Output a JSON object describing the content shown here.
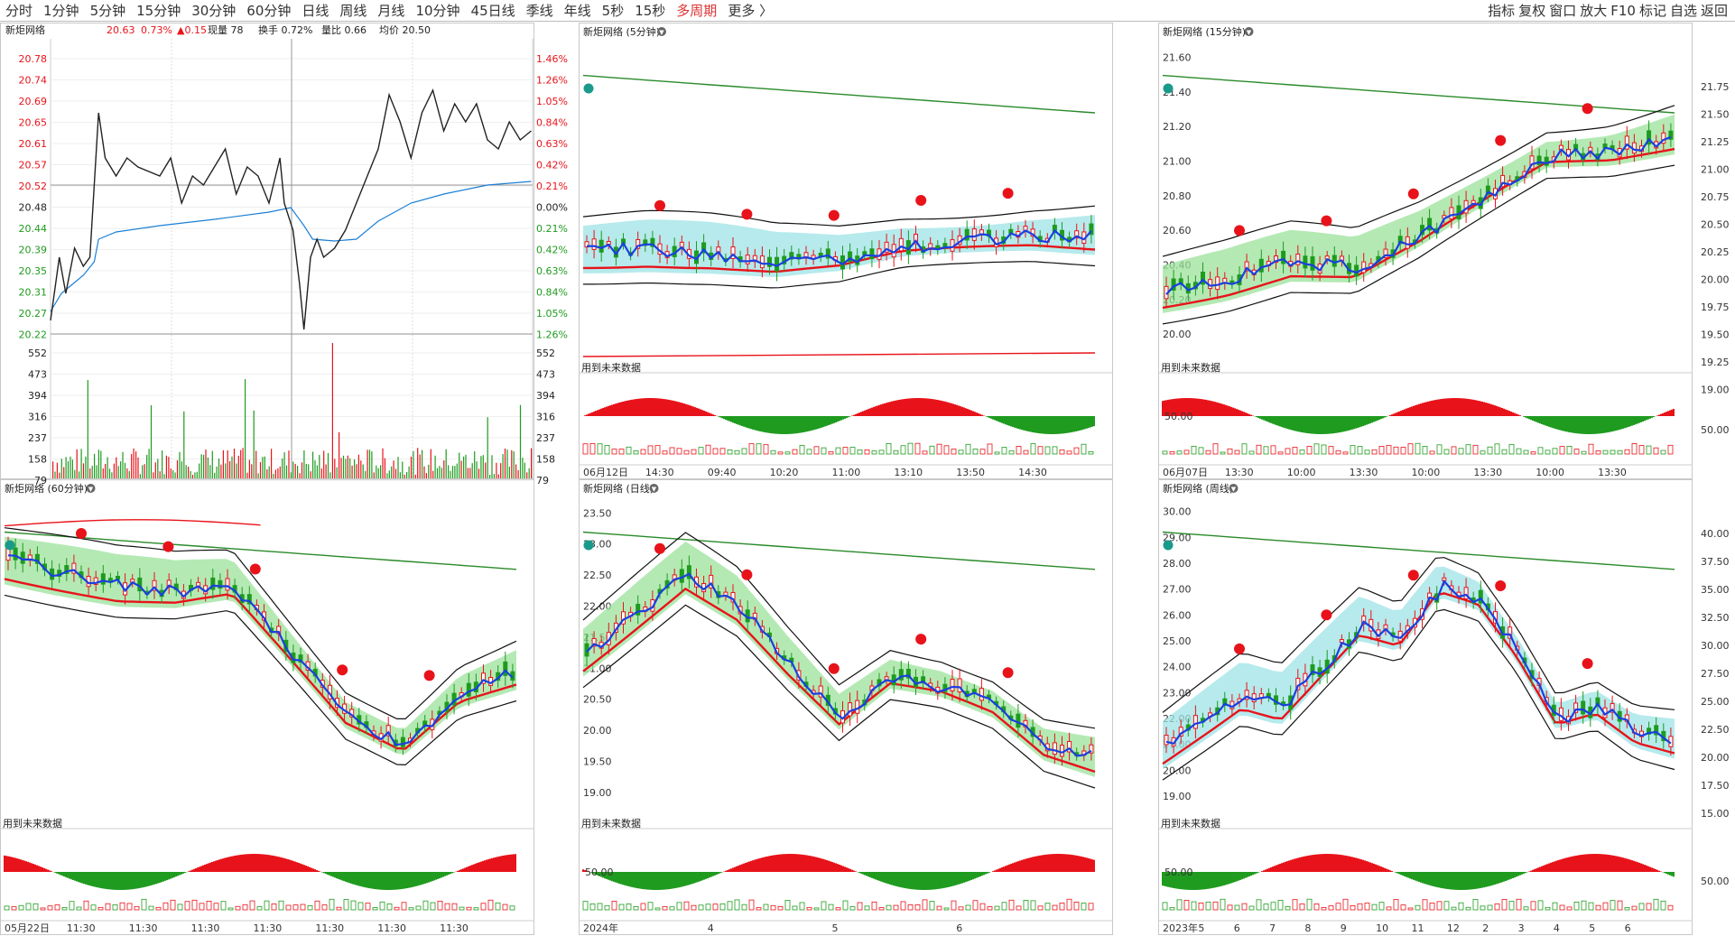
{
  "timeframes": [
    "分时",
    "1分钟",
    "5分钟",
    "15分钟",
    "30分钟",
    "60分钟",
    "日线",
    "周线",
    "月线",
    "10分钟",
    "45日线",
    "季线",
    "年线",
    "5秒",
    "15秒",
    "多周期",
    "更多 〉"
  ],
  "tools": [
    "指标",
    "复权",
    "窗口",
    "放大",
    "F10",
    "标记",
    "自选",
    "返回"
  ],
  "colors": {
    "up": "#e8131a",
    "down": "#1f9b1f",
    "line_black": "#111111",
    "line_blue": "#1a3fe0",
    "line_red": "#e8131a",
    "line_green": "#2a8a2a",
    "fill_green": "#9be29b",
    "fill_cyan": "#9ee3e6"
  },
  "intraday": {
    "title": "新炬网络",
    "price": "20.63",
    "pct": "0.73%",
    "chg": "▲0.15",
    "volume": "现量 78",
    "turnover": "换手 0.72%",
    "ratio": "量比 0.66",
    "avg_label": "均价 20.50",
    "price_ticks": [
      "20.78",
      "20.74",
      "20.69",
      "20.65",
      "20.61",
      "20.57",
      "20.52",
      "20.48",
      "20.44",
      "20.39",
      "20.35",
      "20.31",
      "20.27",
      "20.22"
    ],
    "pct_ticks": [
      "1.46%",
      "1.26%",
      "1.05%",
      "0.84%",
      "0.63%",
      "0.42%",
      "0.21%",
      "0.00%",
      "0.21%",
      "0.42%",
      "0.63%",
      "0.84%",
      "1.05%",
      "1.26%"
    ],
    "vol_ticks": [
      "552",
      "473",
      "394",
      "316",
      "237",
      "158",
      "79"
    ]
  },
  "panels": [
    {
      "id": "m5",
      "title": "新炬网络 (5分钟)",
      "future": "用到未来数据",
      "times": [
        "06月12日",
        "14:30",
        "09:40",
        "10:20",
        "11:00",
        "13:10",
        "13:50",
        "14:30"
      ],
      "yticks": [],
      "ind_tick": ""
    },
    {
      "id": "m15",
      "title": "新炬网络 (15分钟)",
      "future": "用到未来数据",
      "times": [
        "06月07日",
        "13:30",
        "10:00",
        "13:30",
        "10:00",
        "13:30",
        "10:00",
        "13:30"
      ],
      "yticks": [
        "21.60",
        "21.40",
        "21.20",
        "21.00",
        "20.80",
        "20.60",
        "20.40",
        "20.20",
        "20.00"
      ],
      "ind_tick": "50.00"
    },
    {
      "id": "m60",
      "title": "新炬网络 (60分钟)",
      "future": "用到未来数据",
      "times": [
        "05月22日",
        "11:30",
        "11:30",
        "11:30",
        "11:30",
        "11:30",
        "11:30",
        "11:30"
      ],
      "yticks": [],
      "ind_tick": ""
    },
    {
      "id": "day",
      "title": "新炬网络 (日线)",
      "future": "用到未来数据",
      "times": [
        "2024年",
        "4",
        "5",
        "6"
      ],
      "yticks": [
        "23.50",
        "23.00",
        "22.50",
        "22.00",
        "21.50",
        "21.00",
        "20.50",
        "20.00",
        "19.50",
        "19.00"
      ],
      "ind_tick": "50.00"
    },
    {
      "id": "week",
      "title": "新炬网络 (周线)",
      "future": "用到未来数据",
      "times": [
        "2023年",
        "5",
        "6",
        "7",
        "8",
        "9",
        "10",
        "11",
        "12",
        "2",
        "3",
        "4",
        "5",
        "6"
      ],
      "yticks": [
        "30.00",
        "29.00",
        "28.00",
        "27.00",
        "26.00",
        "25.00",
        "24.00",
        "23.00",
        "22.00",
        "21.00",
        "20.00",
        "19.00"
      ],
      "ind_tick": "50.00"
    }
  ],
  "right_axis_top": [
    "21.75",
    "21.50",
    "21.25",
    "21.00",
    "20.75",
    "20.50",
    "20.25",
    "20.00",
    "19.75",
    "19.50",
    "19.25",
    "19.00",
    "50.00"
  ],
  "right_axis_bottom": [
    "40.00",
    "37.50",
    "35.00",
    "32.50",
    "30.00",
    "27.50",
    "25.00",
    "22.50",
    "20.00",
    "17.50",
    "15.00",
    "50.00"
  ]
}
